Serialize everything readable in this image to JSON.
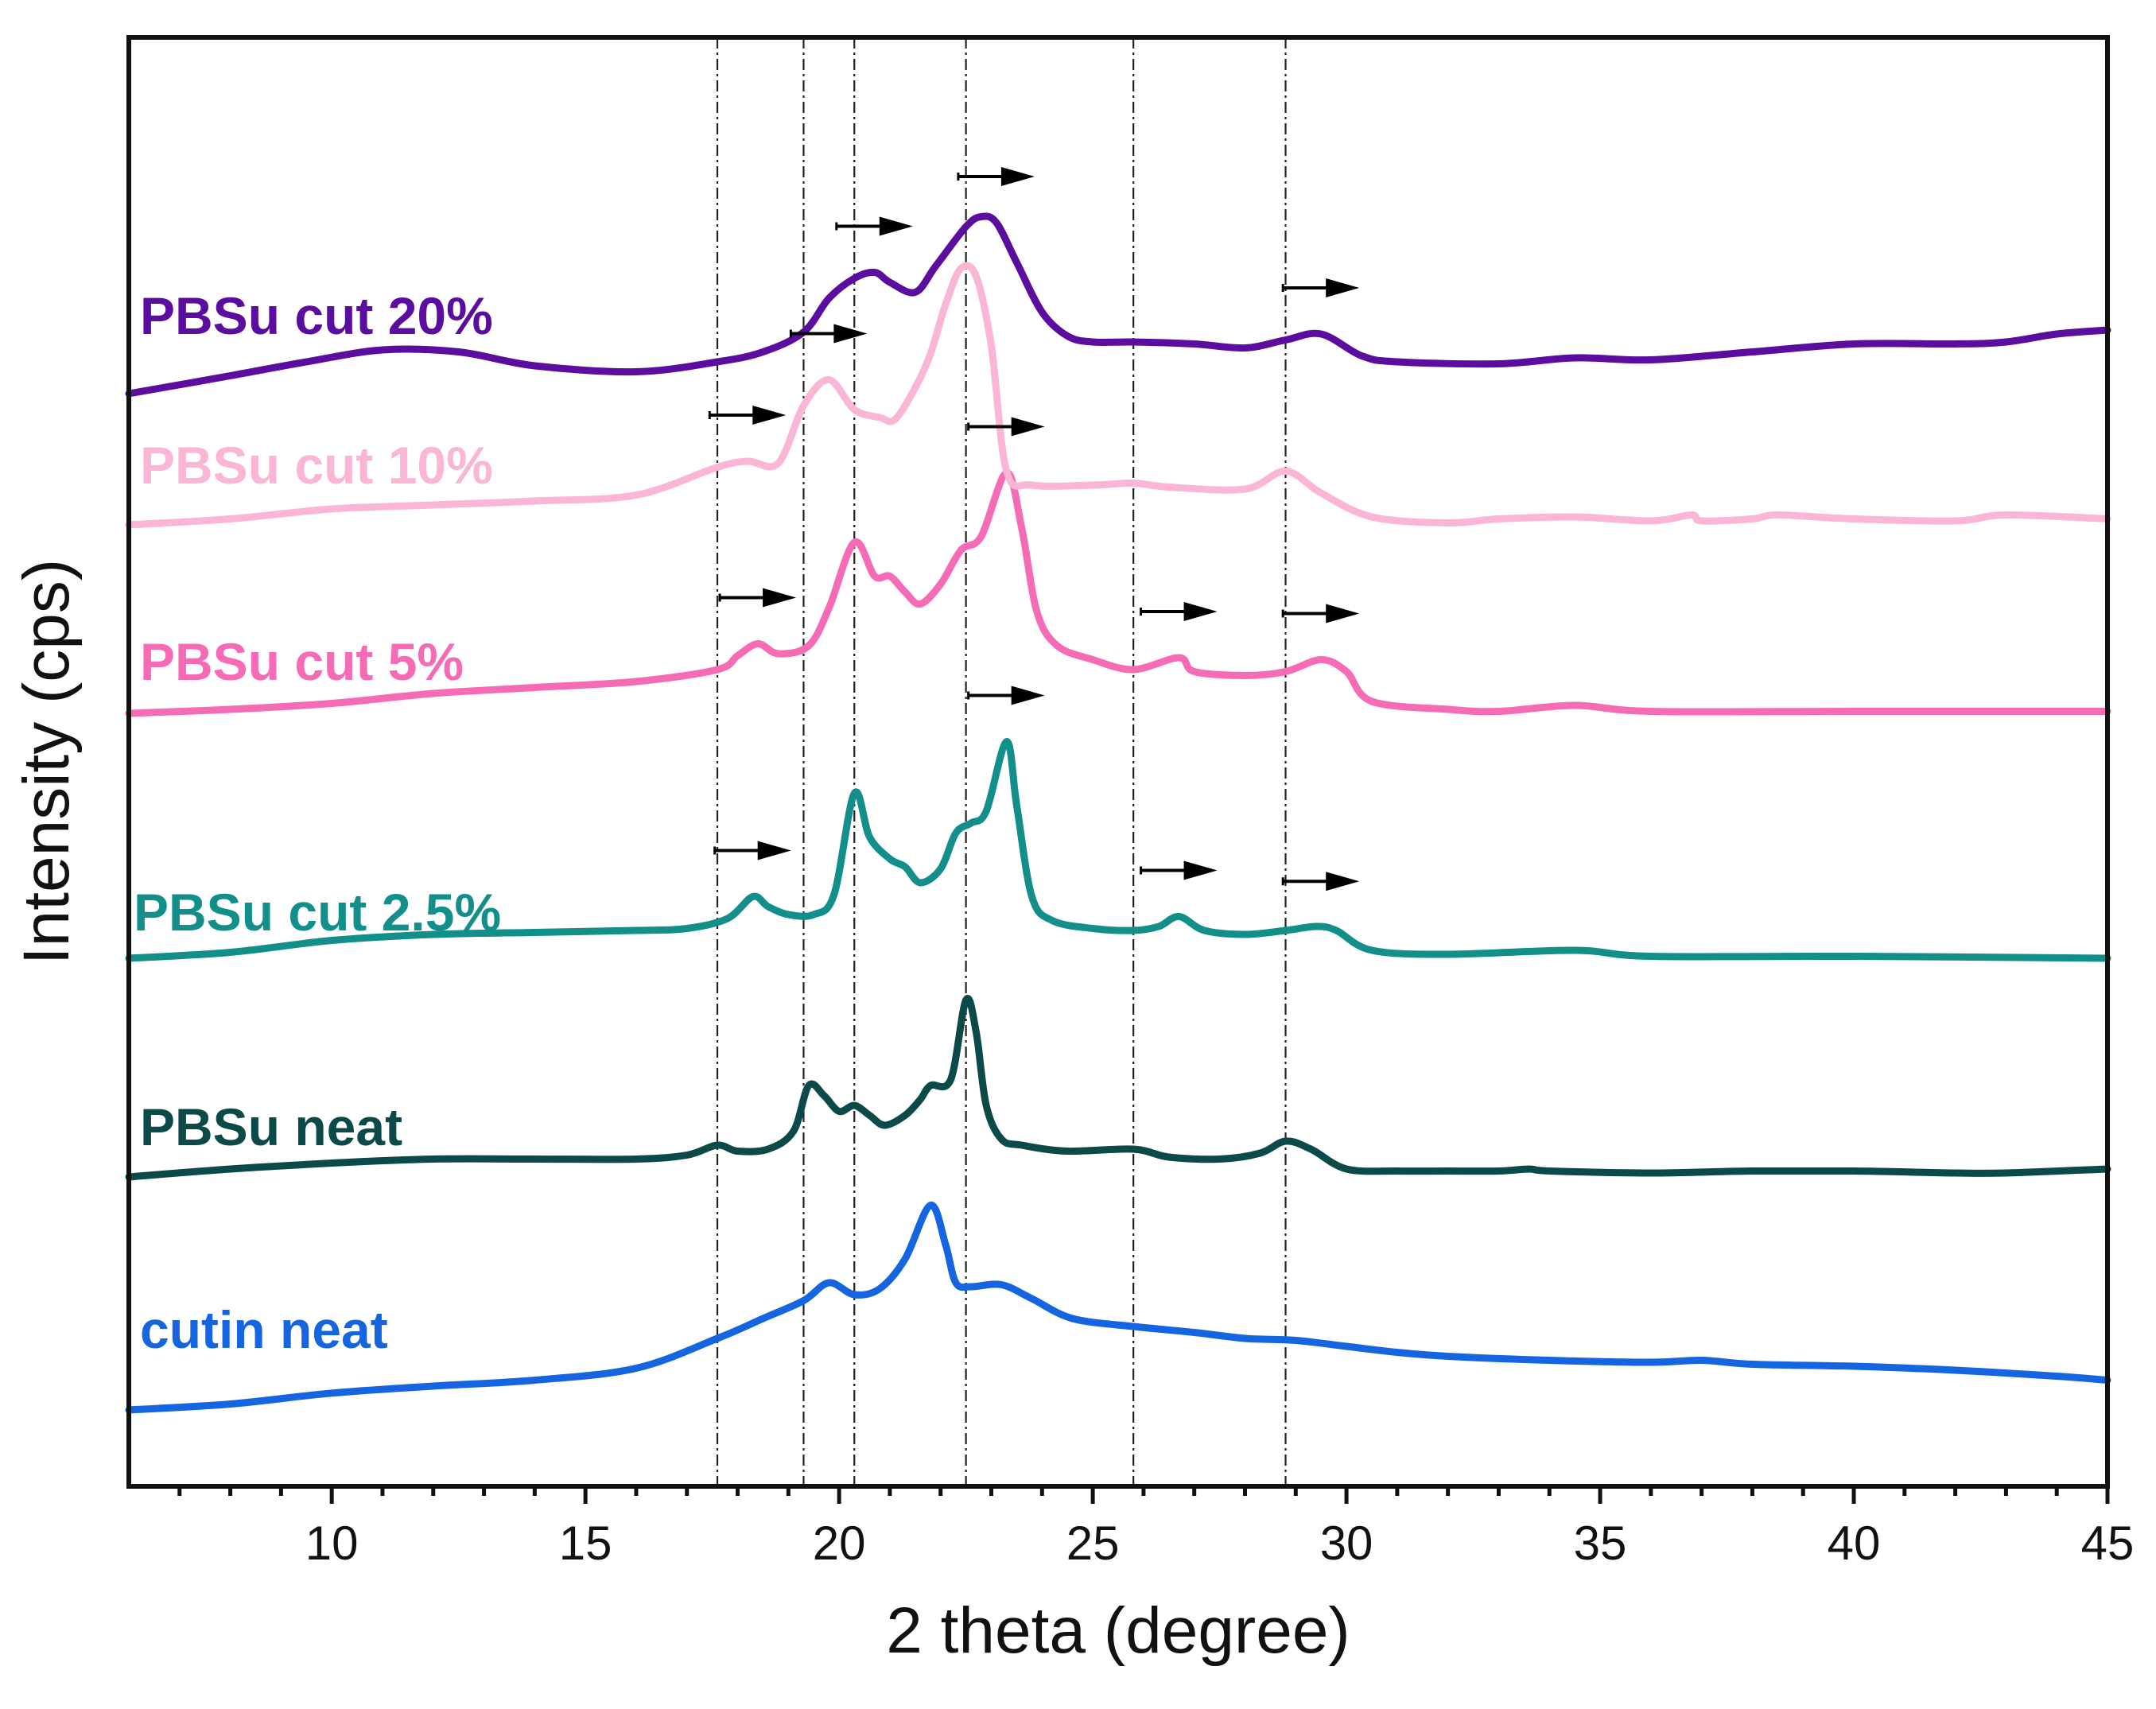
{
  "chart_data": {
    "type": "line",
    "title": "",
    "xlabel": "2 theta (degree)",
    "ylabel": "Intensity (cps)",
    "xlim": [
      6,
      45
    ],
    "x_ticks": [
      10,
      15,
      20,
      25,
      30,
      35,
      40,
      45
    ],
    "x_tick_labels": [
      "10",
      "15",
      "20",
      "25",
      "30",
      "35",
      "40",
      "45"
    ],
    "y_ticks": [],
    "grid": false,
    "legend": "none (series labels placed inline at left of each trace)",
    "vertical_reference_lines": [
      17.6,
      19.3,
      20.3,
      22.5,
      25.8,
      28.8
    ],
    "series": [
      {
        "name": "cutin neat",
        "color": "#1565e0",
        "points": [
          [
            6,
            0.0
          ],
          [
            8,
            0.3
          ],
          [
            10,
            0.85
          ],
          [
            12,
            1.2
          ],
          [
            14,
            1.5
          ],
          [
            16,
            2.1
          ],
          [
            17.6,
            3.6
          ],
          [
            18.5,
            4.6
          ],
          [
            19.3,
            5.5
          ],
          [
            19.8,
            6.4
          ],
          [
            20.3,
            5.8
          ],
          [
            20.8,
            6.1
          ],
          [
            21.3,
            7.6
          ],
          [
            21.8,
            10.3
          ],
          [
            22.1,
            8.3
          ],
          [
            22.3,
            6.4
          ],
          [
            22.6,
            6.2
          ],
          [
            23.2,
            6.3
          ],
          [
            23.8,
            5.6
          ],
          [
            24.6,
            4.6
          ],
          [
            25.8,
            4.2
          ],
          [
            27,
            3.9
          ],
          [
            28,
            3.6
          ],
          [
            29,
            3.5
          ],
          [
            30,
            3.2
          ],
          [
            31,
            2.9
          ],
          [
            32,
            2.7
          ],
          [
            34,
            2.5
          ],
          [
            36,
            2.4
          ],
          [
            37,
            2.5
          ],
          [
            38,
            2.3
          ],
          [
            40,
            2.2
          ],
          [
            42,
            2.0
          ],
          [
            44,
            1.7
          ],
          [
            45,
            1.5
          ]
        ]
      },
      {
        "name": "PBSu neat",
        "color": "#0b4a48",
        "points": [
          [
            6,
            0.0
          ],
          [
            8,
            0.4
          ],
          [
            10,
            0.7
          ],
          [
            12,
            0.9
          ],
          [
            14,
            0.9
          ],
          [
            16,
            0.9
          ],
          [
            17,
            1.1
          ],
          [
            17.6,
            1.6
          ],
          [
            18.0,
            1.3
          ],
          [
            18.6,
            1.4
          ],
          [
            19.1,
            2.3
          ],
          [
            19.4,
            4.6
          ],
          [
            19.7,
            4.1
          ],
          [
            20.0,
            3.3
          ],
          [
            20.3,
            3.6
          ],
          [
            20.6,
            3.1
          ],
          [
            20.9,
            2.6
          ],
          [
            21.3,
            3.1
          ],
          [
            21.6,
            3.9
          ],
          [
            21.8,
            4.6
          ],
          [
            22.2,
            4.9
          ],
          [
            22.5,
            8.9
          ],
          [
            22.7,
            7.3
          ],
          [
            22.9,
            3.6
          ],
          [
            23.2,
            1.9
          ],
          [
            23.6,
            1.6
          ],
          [
            24.5,
            1.3
          ],
          [
            25.8,
            1.4
          ],
          [
            26.5,
            1.0
          ],
          [
            27.5,
            0.9
          ],
          [
            28.3,
            1.2
          ],
          [
            28.8,
            1.8
          ],
          [
            29.3,
            1.4
          ],
          [
            30,
            0.4
          ],
          [
            31,
            0.3
          ],
          [
            32,
            0.3
          ],
          [
            33,
            0.3
          ],
          [
            33.6,
            0.4
          ],
          [
            34,
            0.3
          ],
          [
            36,
            0.2
          ],
          [
            38,
            0.3
          ],
          [
            40,
            0.3
          ],
          [
            42,
            0.2
          ],
          [
            43,
            0.2
          ],
          [
            45,
            0.4
          ]
        ]
      },
      {
        "name": "PBSu cut 2.5%",
        "color": "#128f8b",
        "points": [
          [
            6,
            0.0
          ],
          [
            8,
            0.3
          ],
          [
            10,
            0.9
          ],
          [
            12,
            1.2
          ],
          [
            14,
            1.3
          ],
          [
            16,
            1.4
          ],
          [
            17,
            1.5
          ],
          [
            17.8,
            2.0
          ],
          [
            18.3,
            3.1
          ],
          [
            18.6,
            2.6
          ],
          [
            19.0,
            2.2
          ],
          [
            19.5,
            2.2
          ],
          [
            19.9,
            3.2
          ],
          [
            20.3,
            8.3
          ],
          [
            20.6,
            6.1
          ],
          [
            21.0,
            5.0
          ],
          [
            21.3,
            4.6
          ],
          [
            21.6,
            3.8
          ],
          [
            22.0,
            4.5
          ],
          [
            22.3,
            6.3
          ],
          [
            22.6,
            6.8
          ],
          [
            22.9,
            7.4
          ],
          [
            23.3,
            10.9
          ],
          [
            23.5,
            7.7
          ],
          [
            23.8,
            3.1
          ],
          [
            24.2,
            1.9
          ],
          [
            25,
            1.5
          ],
          [
            25.8,
            1.4
          ],
          [
            26.3,
            1.6
          ],
          [
            26.7,
            2.1
          ],
          [
            27.2,
            1.4
          ],
          [
            28,
            1.2
          ],
          [
            28.8,
            1.4
          ],
          [
            29.4,
            1.6
          ],
          [
            29.8,
            1.4
          ],
          [
            30.5,
            0.4
          ],
          [
            32,
            0.2
          ],
          [
            34.5,
            0.4
          ],
          [
            36,
            0.1
          ],
          [
            40,
            0.1
          ],
          [
            45,
            0.0
          ]
        ]
      },
      {
        "name": "PBSu cut 5%",
        "color": "#f56bb5",
        "points": [
          [
            6,
            0.0
          ],
          [
            8,
            0.2
          ],
          [
            10,
            0.5
          ],
          [
            12,
            1.0
          ],
          [
            14,
            1.3
          ],
          [
            16,
            1.6
          ],
          [
            17.6,
            2.2
          ],
          [
            18.0,
            2.9
          ],
          [
            18.4,
            3.5
          ],
          [
            18.8,
            3.0
          ],
          [
            19.4,
            3.4
          ],
          [
            19.8,
            5.3
          ],
          [
            20.3,
            8.6
          ],
          [
            20.7,
            6.9
          ],
          [
            21.0,
            6.9
          ],
          [
            21.3,
            6.1
          ],
          [
            21.6,
            5.5
          ],
          [
            22.0,
            6.5
          ],
          [
            22.4,
            8.2
          ],
          [
            22.8,
            8.9
          ],
          [
            23.3,
            12.1
          ],
          [
            23.6,
            9.3
          ],
          [
            23.9,
            5.1
          ],
          [
            24.3,
            3.4
          ],
          [
            25,
            2.7
          ],
          [
            25.8,
            2.2
          ],
          [
            26.7,
            2.8
          ],
          [
            27.0,
            2.1
          ],
          [
            28,
            1.9
          ],
          [
            28.8,
            2.1
          ],
          [
            29.5,
            2.7
          ],
          [
            30,
            2.1
          ],
          [
            30.5,
            0.6
          ],
          [
            32,
            0.2
          ],
          [
            33,
            0.1
          ],
          [
            34.5,
            0.4
          ],
          [
            36,
            0.1
          ],
          [
            40,
            0.1
          ],
          [
            45,
            0.1
          ]
        ]
      },
      {
        "name": "PBSu cut 10%",
        "color": "#fbb5d6",
        "points": [
          [
            6,
            0.0
          ],
          [
            8,
            0.3
          ],
          [
            10,
            0.8
          ],
          [
            12,
            1.0
          ],
          [
            14,
            1.2
          ],
          [
            16,
            1.5
          ],
          [
            17.6,
            2.9
          ],
          [
            18.2,
            3.2
          ],
          [
            18.8,
            3.1
          ],
          [
            19.3,
            6.0
          ],
          [
            19.8,
            7.3
          ],
          [
            20.3,
            5.8
          ],
          [
            20.8,
            5.4
          ],
          [
            21.1,
            5.3
          ],
          [
            21.5,
            6.9
          ],
          [
            21.8,
            8.6
          ],
          [
            22.1,
            11.1
          ],
          [
            22.4,
            12.9
          ],
          [
            22.7,
            12.5
          ],
          [
            23.0,
            9.0
          ],
          [
            23.3,
            2.7
          ],
          [
            23.8,
            2.0
          ],
          [
            25,
            2.0
          ],
          [
            25.8,
            2.1
          ],
          [
            26.5,
            1.9
          ],
          [
            28,
            1.8
          ],
          [
            28.8,
            2.7
          ],
          [
            29.5,
            1.6
          ],
          [
            30.5,
            0.4
          ],
          [
            32,
            0.1
          ],
          [
            33,
            0.3
          ],
          [
            34.5,
            0.4
          ],
          [
            36,
            0.2
          ],
          [
            36.8,
            0.5
          ],
          [
            37,
            0.2
          ],
          [
            38,
            0.3
          ],
          [
            38.5,
            0.5
          ],
          [
            40,
            0.3
          ],
          [
            42,
            0.2
          ],
          [
            43,
            0.5
          ],
          [
            45,
            0.3
          ]
        ]
      },
      {
        "name": "PBSu cut 20%",
        "color": "#5a0d9e",
        "points": [
          [
            6,
            0.0
          ],
          [
            8,
            0.9
          ],
          [
            9.5,
            1.6
          ],
          [
            11,
            2.2
          ],
          [
            12.5,
            2.1
          ],
          [
            14,
            1.4
          ],
          [
            16,
            1.1
          ],
          [
            17.6,
            1.6
          ],
          [
            18.5,
            2.1
          ],
          [
            19.3,
            3.1
          ],
          [
            19.8,
            4.8
          ],
          [
            20.3,
            5.8
          ],
          [
            20.7,
            6.1
          ],
          [
            21.0,
            5.6
          ],
          [
            21.5,
            5.1
          ],
          [
            21.9,
            6.4
          ],
          [
            22.5,
            8.4
          ],
          [
            22.8,
            8.9
          ],
          [
            23.1,
            8.6
          ],
          [
            23.5,
            6.6
          ],
          [
            24.0,
            4.1
          ],
          [
            24.5,
            2.9
          ],
          [
            25,
            2.6
          ],
          [
            25.8,
            2.6
          ],
          [
            27,
            2.5
          ],
          [
            28,
            2.3
          ],
          [
            28.8,
            2.7
          ],
          [
            29.5,
            3.0
          ],
          [
            30.3,
            1.9
          ],
          [
            31,
            1.6
          ],
          [
            33,
            1.5
          ],
          [
            34.5,
            1.8
          ],
          [
            36,
            1.7
          ],
          [
            38,
            2.1
          ],
          [
            40,
            2.5
          ],
          [
            42,
            2.5
          ],
          [
            43,
            2.6
          ],
          [
            44,
            3.0
          ],
          [
            45,
            3.2
          ]
        ]
      }
    ],
    "annotations": [
      {
        "type": "right-arrow",
        "series": "PBSu cut 2.5%",
        "x": 18.3
      },
      {
        "type": "right-arrow",
        "series": "PBSu cut 2.5%",
        "x": 23.3
      },
      {
        "type": "right-arrow",
        "series": "PBSu cut 2.5%",
        "x": 26.7
      },
      {
        "type": "right-arrow",
        "series": "PBSu cut 2.5%",
        "x": 29.5
      },
      {
        "type": "right-arrow",
        "series": "PBSu cut 5%",
        "x": 18.4
      },
      {
        "type": "right-arrow",
        "series": "PBSu cut 5%",
        "x": 23.3
      },
      {
        "type": "right-arrow",
        "series": "PBSu cut 5%",
        "x": 26.7
      },
      {
        "type": "right-arrow",
        "series": "PBSu cut 5%",
        "x": 29.5
      },
      {
        "type": "right-arrow",
        "series": "PBSu cut 10%",
        "x": 18.2
      },
      {
        "type": "right-arrow",
        "series": "PBSu cut 10%",
        "x": 19.8
      },
      {
        "type": "right-arrow",
        "series": "PBSu cut 20%",
        "x": 20.7
      },
      {
        "type": "right-arrow",
        "series": "PBSu cut 20%",
        "x": 23.1
      },
      {
        "type": "right-arrow",
        "series": "PBSu cut 20%",
        "x": 29.5
      }
    ]
  }
}
